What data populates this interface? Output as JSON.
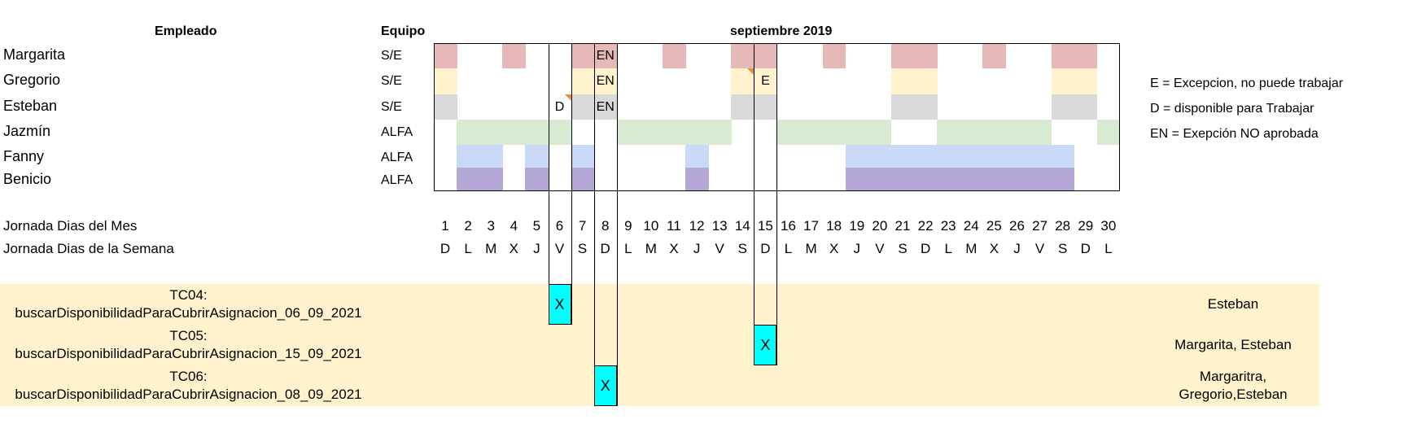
{
  "headers": {
    "employee": "Empleado",
    "team": "Equipo",
    "month": "septiembre 2019"
  },
  "employees": [
    {
      "name": "Margarita",
      "team": "S/E",
      "color": "#e6b8b7",
      "days": [
        1,
        4,
        7,
        8,
        11,
        14,
        15,
        18,
        21,
        22,
        25,
        28,
        29
      ],
      "text_days": {
        "8": "EN"
      }
    },
    {
      "name": "Gregorio",
      "team": "S/E",
      "color": "#fff2cc",
      "days": [
        1,
        7,
        8,
        14,
        15,
        21,
        22,
        28,
        29
      ],
      "text_days": {
        "8": "EN",
        "15": "E"
      }
    },
    {
      "name": "Esteban",
      "team": "S/E",
      "color": "#d9d9d9",
      "days": [
        1,
        7,
        8,
        14,
        15,
        21,
        22,
        28,
        29
      ],
      "text_days": {
        "6": "D",
        "8": "EN"
      }
    },
    {
      "name": "Jazmín",
      "team": "ALFA",
      "color": "#d9ead3",
      "days": [
        2,
        3,
        4,
        5,
        6,
        9,
        10,
        11,
        12,
        13,
        16,
        17,
        18,
        19,
        20,
        23,
        24,
        25,
        26,
        27,
        30
      ],
      "text_days": {}
    },
    {
      "name": "Fanny",
      "team": "ALFA",
      "color": "#c9daf8",
      "days": [
        2,
        3,
        5,
        7,
        12,
        19,
        20,
        21,
        22,
        23,
        24,
        25,
        26,
        27,
        28
      ],
      "text_days": {}
    },
    {
      "name": "Benicio",
      "team": "ALFA",
      "color": "#b4a7d6",
      "days": [
        2,
        3,
        5,
        7,
        12,
        19,
        20,
        21,
        22,
        23,
        24,
        25,
        26,
        27,
        28
      ],
      "text_days": {}
    }
  ],
  "legend": [
    "E = Excepcion, no puede trabajar",
    "D = disponible para Trabajar",
    "EN = Exepción NO aprobada"
  ],
  "rows": {
    "days_label": "Jornada Dias del Mes",
    "weekdays_label": "Jornada Dias de la Semana",
    "day_numbers": [
      "1",
      "2",
      "3",
      "4",
      "5",
      "6",
      "7",
      "8",
      "9",
      "10",
      "11",
      "12",
      "13",
      "14",
      "15",
      "16",
      "17",
      "18",
      "19",
      "20",
      "21",
      "22",
      "23",
      "24",
      "25",
      "26",
      "27",
      "28",
      "29",
      "30"
    ],
    "weekdays": [
      "D",
      "L",
      "M",
      "X",
      "J",
      "V",
      "S",
      "D",
      "L",
      "M",
      "X",
      "J",
      "V",
      "S",
      "D",
      "L",
      "M",
      "X",
      "J",
      "V",
      "S",
      "D",
      "L",
      "M",
      "X",
      "J",
      "V",
      "S",
      "D",
      "L"
    ]
  },
  "test_cases": [
    {
      "id": "TC04:",
      "name": "buscarDisponibilidadParaCubrirAsignacion_06_09_2021",
      "day": 6,
      "mark": "X",
      "result_lines": [
        "Esteban"
      ]
    },
    {
      "id": "TC05:",
      "name": "buscarDisponibilidadParaCubrirAsignacion_15_09_2021",
      "day": 15,
      "mark": "X",
      "result_lines": [
        "Margarita, Esteban"
      ]
    },
    {
      "id": "TC06:",
      "name": "buscarDisponibilidadParaCubrirAsignacion_08_09_2021",
      "day": 8,
      "mark": "X",
      "result_lines": [
        "Margaritra,",
        "Gregorio,Esteban"
      ]
    }
  ],
  "highlight_days": [
    6,
    8,
    15
  ]
}
